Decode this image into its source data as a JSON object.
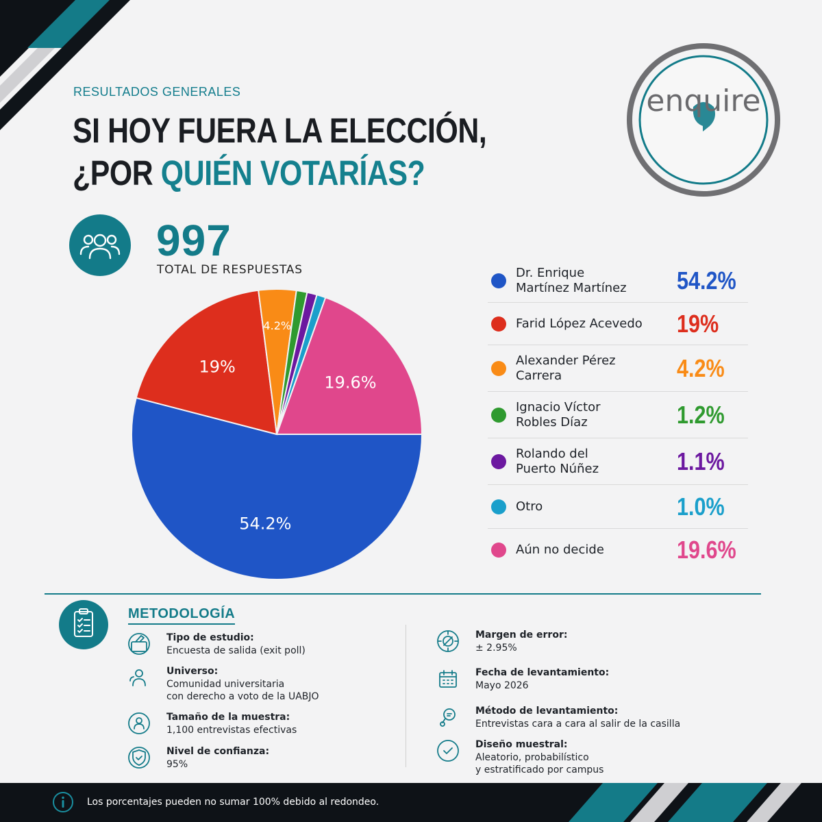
{
  "header": {
    "eyebrow": "RESULTADOS GENERALES",
    "title_line1": "SI HOY FUERA LA ELECCIÓN,",
    "title_line2_prefix": "¿POR ",
    "title_line2_accent": "QUIÉN VOTARÍAS?"
  },
  "brand": {
    "logo_text": "enquire",
    "logo_icon": "enquire-logo-circle"
  },
  "summary": {
    "total_value": "997",
    "total_label": "TOTAL DE RESPUESTAS",
    "icon": "people-group-icon"
  },
  "chart_data": {
    "type": "pie",
    "categories": [
      "Dr. Enrique Martínez Martínez",
      "Farid López Acevedo",
      "Alexander Pérez Carrera",
      "Ignacio Víctor Robles Díaz",
      "Rolando del Puerto Núñez",
      "Otro",
      "Aún no decide"
    ],
    "values": [
      54.2,
      19,
      4.2,
      1.2,
      1.1,
      1.0,
      19.6
    ],
    "value_labels": [
      "54.2%",
      "19%",
      "4.2%",
      "1.2%",
      "1.1%",
      "1.0%",
      "19.6%"
    ],
    "colors": [
      "#1f55c6",
      "#dd2e1d",
      "#f98b16",
      "#2f9a2f",
      "#6c18a0",
      "#1a9fcb",
      "#e0478c"
    ],
    "legend_names": [
      "Dr. Enrique\nMartínez Martínez",
      "Farid López Acevedo",
      "Alexander Pérez\nCarrera",
      "Ignacio Víctor\nRobles Díaz",
      "Rolando del\nPuerto Núñez",
      "Otro",
      "Aún no decide"
    ],
    "legend_placement": "right",
    "unit": "%"
  },
  "methodology": {
    "title": "METODOLOGÍA",
    "icon": "clipboard-checklist-icon",
    "items": [
      {
        "label": "Tipo de estudio:",
        "value": "Encuesta de salida (exit poll)",
        "icon": "ballot-box-icon"
      },
      {
        "label": "Universo:",
        "value": "Comunidad universitaria\ncon derecho a voto de la UABJO",
        "icon": "community-users-icon"
      },
      {
        "label": "Tamaño de la muestra:",
        "value": "1,100 entrevistas efectivas",
        "icon": "person-circle-icon"
      },
      {
        "label": "Nivel de confianza:",
        "value": "95%",
        "icon": "shield-check-icon"
      },
      {
        "label": "Margen de error:",
        "value": "± 2.95%",
        "icon": "target-scope-icon"
      },
      {
        "label": "Fecha de levantamiento:",
        "value": "Mayo 2026",
        "icon": "calendar-icon"
      },
      {
        "label": "Método de levantamiento:",
        "value": "Entrevistas cara a cara al salir de la casilla",
        "icon": "interview-speech-icon"
      },
      {
        "label": "Diseño muestral:",
        "value": "Aleatorio, probabilístico\ny estratificado por campus",
        "icon": "check-circle-icon"
      }
    ]
  },
  "footer": {
    "note": "Los porcentajes pueden no sumar 100% debido al redondeo.",
    "icon": "info-icon"
  }
}
